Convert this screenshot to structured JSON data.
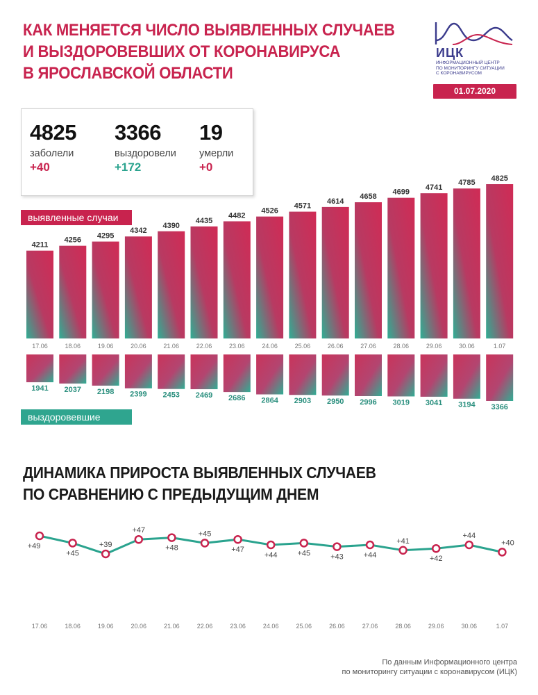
{
  "header": {
    "title_lines": [
      "КАК МЕНЯЕТСЯ ЧИСЛО ВЫЯВЛЕННЫХ СЛУЧАЕВ",
      "И ВЫЗДОРОВЕВШИХ ОТ КОРОНАВИРУСА",
      "В ЯРОСЛАВСКОЙ ОБЛАСТИ"
    ],
    "logo_abbr": "ИЦК",
    "logo_sub_lines": [
      "ИНФОРМАЦИОННЫЙ ЦЕНТР",
      "ПО МОНИТОРИНГУ СИТУАЦИИ",
      "С КОРОНАВИРУСОМ"
    ],
    "date": "01.07.2020"
  },
  "stats": {
    "sick": {
      "value": "4825",
      "label": "заболели",
      "delta": "+40"
    },
    "recovered": {
      "value": "3366",
      "label": "выздоровели",
      "delta": "+172"
    },
    "died": {
      "value": "19",
      "label": "умерли",
      "delta": "+0"
    }
  },
  "labels": {
    "cases": "выявленные случаи",
    "recovered": "выздоровевшие"
  },
  "section2_title_lines": [
    "ДИНАМИКА ПРИРОСТА ВЫЯВЛЕННЫХ СЛУЧАЕВ",
    "ПО СРАВНЕНИЮ С ПРЕДЫДУЩИМ ДНЕМ"
  ],
  "footer_lines": [
    "По данным Информационного центра",
    "по мониторингу ситуации с коронавирусом (ИЦК)"
  ],
  "colors": {
    "brand_red": "#c8234e",
    "brand_teal": "#2aa38e",
    "logo_blue": "#3b3b8c"
  },
  "chart_data": [
    {
      "type": "bar",
      "categories": [
        "17.06",
        "18.06",
        "19.06",
        "20.06",
        "21.06",
        "22.06",
        "23.06",
        "24.06",
        "25.06",
        "26.06",
        "27.06",
        "28.06",
        "29.06",
        "30.06",
        "1.07"
      ],
      "series": [
        {
          "name": "выявленные случаи",
          "values": [
            4211,
            4256,
            4295,
            4342,
            4390,
            4435,
            4482,
            4526,
            4571,
            4614,
            4658,
            4699,
            4741,
            4785,
            4825
          ]
        },
        {
          "name": "выздоровевшие",
          "values": [
            1941,
            2037,
            2198,
            2399,
            2453,
            2469,
            2686,
            2864,
            2903,
            2950,
            2996,
            3019,
            3041,
            3194,
            3366
          ]
        }
      ]
    },
    {
      "type": "line",
      "categories": [
        "17.06",
        "18.06",
        "19.06",
        "20.06",
        "21.06",
        "22.06",
        "23.06",
        "24.06",
        "25.06",
        "26.06",
        "27.06",
        "28.06",
        "29.06",
        "30.06",
        "1.07"
      ],
      "values": [
        49,
        45,
        39,
        47,
        48,
        45,
        47,
        44,
        45,
        43,
        44,
        41,
        42,
        44,
        40
      ],
      "value_labels": [
        "+49",
        "+45",
        "+39",
        "+47",
        "+48",
        "+45",
        "+47",
        "+44",
        "+45",
        "+43",
        "+44",
        "+41",
        "+42",
        "+44",
        "+40"
      ]
    }
  ]
}
